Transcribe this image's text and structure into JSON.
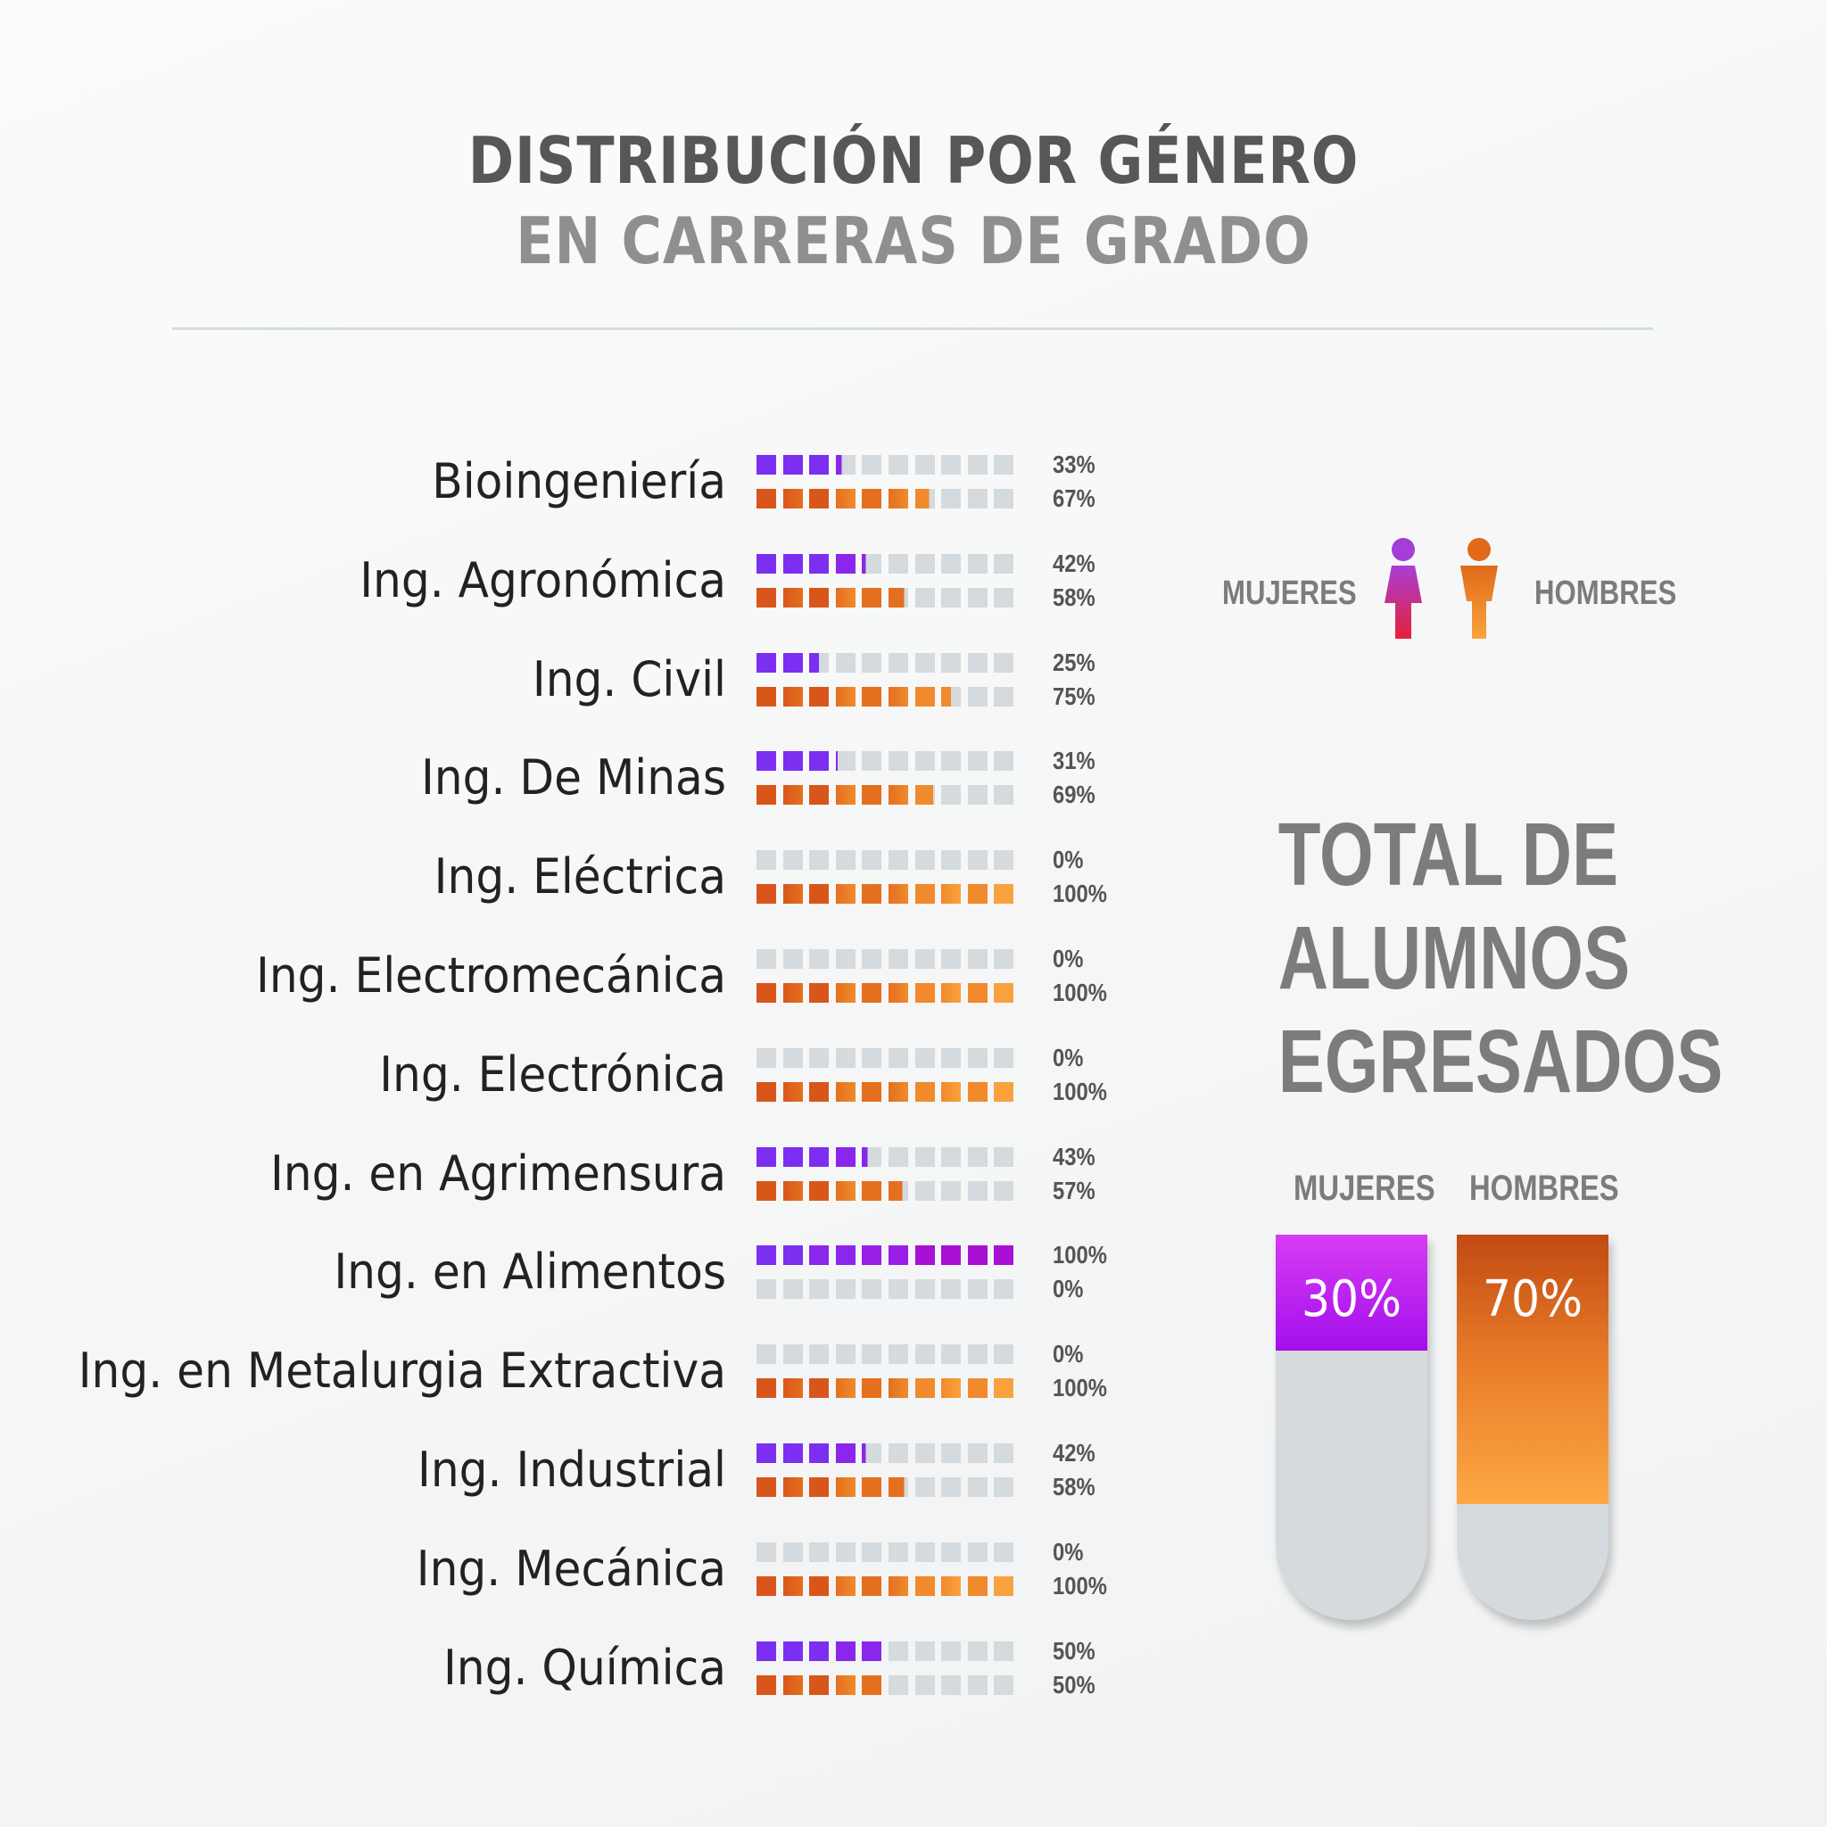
{
  "title_line1": "DISTRIBUCIÓN POR GÉNERO",
  "title_line2": "EN CARRERAS DE GRADO",
  "legend": {
    "women_label": "MUJERES",
    "men_label": "HOMBRES",
    "women_icon": "woman-icon",
    "men_icon": "man-icon"
  },
  "colors": {
    "women": "#8a2cf0",
    "men": "#e0691f",
    "empty": "#d4dadd",
    "text": "#555555"
  },
  "chart_data": {
    "type": "bar",
    "title": "DISTRIBUCIÓN POR GÉNERO EN CARRERAS DE GRADO",
    "unit": "%",
    "categories": [
      "Bioingeniería",
      "Ing. Agronómica",
      "Ing. Civil",
      "Ing. De Minas",
      "Ing. Eléctrica",
      "Ing. Electromecánica",
      "Ing. Electrónica",
      "Ing. en Agrimensura",
      "Ing. en Alimentos",
      "Ing. en Metalurgia Extractiva",
      "Ing. Industrial",
      "Ing. Mecánica",
      "Ing. Química"
    ],
    "series": [
      {
        "name": "MUJERES",
        "values": [
          33,
          42,
          25,
          31,
          0,
          0,
          0,
          43,
          100,
          0,
          42,
          0,
          50
        ],
        "labels": [
          "33%",
          "42%",
          "25%",
          "31%",
          "0%",
          "0%",
          "0%",
          "43%",
          "100%",
          "0%",
          "42%",
          "0%",
          "50%"
        ]
      },
      {
        "name": "HOMBRES",
        "values": [
          67,
          58,
          75,
          69,
          100,
          100,
          100,
          57,
          0,
          100,
          58,
          100,
          50
        ],
        "labels": [
          "67%",
          "58%",
          "75%",
          "69%",
          "100%",
          "100%",
          "100%",
          "57%",
          "0%",
          "100%",
          "58%",
          "100%",
          "50%"
        ]
      }
    ],
    "ylim": [
      0,
      100
    ]
  },
  "total": {
    "title_lines": [
      "TOTAL DE",
      "ALUMNOS",
      "EGRESADOS"
    ],
    "women_label": "MUJERES",
    "men_label": "HOMBRES",
    "women_value": 30,
    "men_value": 70,
    "women_pct": "30%",
    "men_pct": "70%"
  }
}
